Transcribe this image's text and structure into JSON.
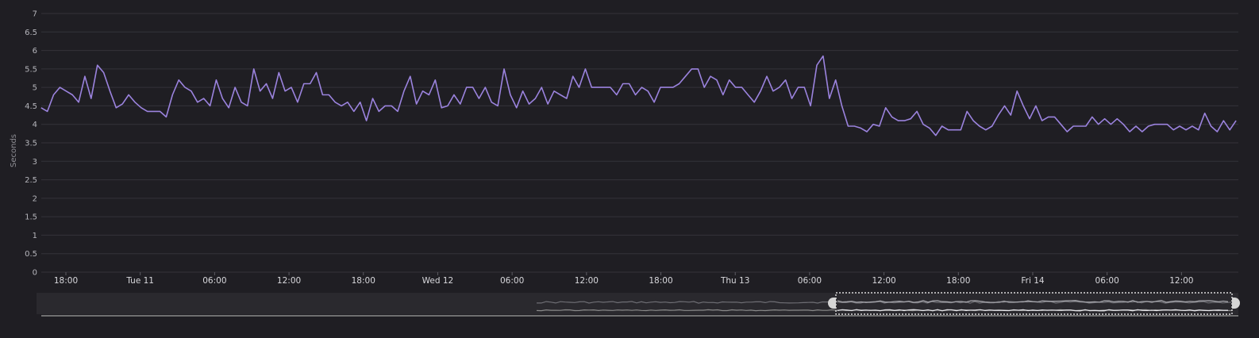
{
  "chart_data": {
    "type": "line",
    "ylabel": "Seconds",
    "ylim": [
      0,
      7
    ],
    "yticks": [
      "0",
      "0.5",
      "1",
      "1.5",
      "2",
      "2.5",
      "3",
      "3.5",
      "4",
      "4.5",
      "5",
      "5.5",
      "6",
      "6.5",
      "7"
    ],
    "xticks": [
      {
        "label": "18:00",
        "t": 0
      },
      {
        "label": "Tue 11",
        "t": 6
      },
      {
        "label": "06:00",
        "t": 12
      },
      {
        "label": "12:00",
        "t": 18
      },
      {
        "label": "18:00",
        "t": 24
      },
      {
        "label": "Wed 12",
        "t": 30
      },
      {
        "label": "06:00",
        "t": 36
      },
      {
        "label": "12:00",
        "t": 42
      },
      {
        "label": "18:00",
        "t": 48
      },
      {
        "label": "Thu 13",
        "t": 54
      },
      {
        "label": "06:00",
        "t": 60
      },
      {
        "label": "12:00",
        "t": 66
      },
      {
        "label": "18:00",
        "t": 72
      },
      {
        "label": "Fri 14",
        "t": 78
      },
      {
        "label": "06:00",
        "t": 84
      },
      {
        "label": "12:00",
        "t": 90
      }
    ],
    "x_range": [
      -2,
      94.4
    ],
    "grid": true,
    "series": [
      {
        "color": "#9b83de",
        "values": [
          4.45,
          4.35,
          4.8,
          5.0,
          4.9,
          4.8,
          4.6,
          5.3,
          4.7,
          5.6,
          5.4,
          4.9,
          4.45,
          4.55,
          4.8,
          4.6,
          4.45,
          4.35,
          4.35,
          4.35,
          4.2,
          4.8,
          5.2,
          5.0,
          4.9,
          4.6,
          4.7,
          4.5,
          5.2,
          4.7,
          4.45,
          5.0,
          4.6,
          4.5,
          5.5,
          4.9,
          5.1,
          4.7,
          5.4,
          4.9,
          5.0,
          4.6,
          5.1,
          5.1,
          5.4,
          4.8,
          4.8,
          4.6,
          4.5,
          4.6,
          4.35,
          4.6,
          4.1,
          4.7,
          4.35,
          4.5,
          4.5,
          4.35,
          4.9,
          5.3,
          4.55,
          4.9,
          4.8,
          5.2,
          4.45,
          4.5,
          4.8,
          4.55,
          5.0,
          5.0,
          4.7,
          5.0,
          4.6,
          4.5,
          5.5,
          4.8,
          4.45,
          4.9,
          4.55,
          4.7,
          5.0,
          4.55,
          4.9,
          4.8,
          4.7,
          5.3,
          5.0,
          5.5,
          5.0,
          5.0,
          5.0,
          5.0,
          4.8,
          5.1,
          5.1,
          4.8,
          5.0,
          4.9,
          4.6,
          5.0,
          5.0,
          5.0,
          5.1,
          5.3,
          5.5,
          5.5,
          5.0,
          5.3,
          5.2,
          4.8,
          5.2,
          5.0,
          5.0,
          4.8,
          4.6,
          4.9,
          5.3,
          4.9,
          5.0,
          5.2,
          4.7,
          5.0,
          5.0,
          4.5,
          5.6,
          5.85,
          4.7,
          5.2,
          4.5,
          3.95,
          3.95,
          3.9,
          3.8,
          4.0,
          3.95,
          4.45,
          4.2,
          4.1,
          4.1,
          4.15,
          4.35,
          4.0,
          3.9,
          3.7,
          3.95,
          3.85,
          3.85,
          3.85,
          4.35,
          4.1,
          3.95,
          3.85,
          3.95,
          4.25,
          4.5,
          4.25,
          4.9,
          4.5,
          4.15,
          4.5,
          4.1,
          4.2,
          4.2,
          4.0,
          3.8,
          3.95,
          3.95,
          3.95,
          4.2,
          4.0,
          4.15,
          4.0,
          4.15,
          4.0,
          3.8,
          3.95,
          3.8,
          3.95,
          4.0,
          4.0,
          4.0,
          3.85,
          3.95,
          3.85,
          3.95,
          3.85,
          4.3,
          3.95,
          3.8,
          4.1,
          3.85,
          4.1
        ]
      }
    ]
  },
  "navigator": {
    "line_color": "#8a8a8a",
    "selection_border": "#ffffff"
  }
}
